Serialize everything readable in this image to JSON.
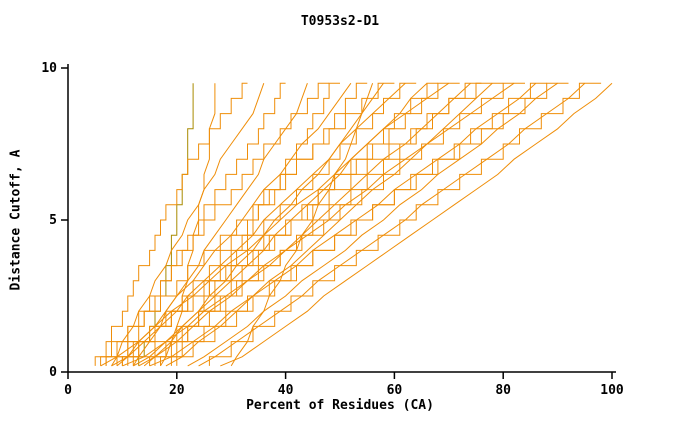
{
  "chart_data": {
    "type": "line",
    "title": "T0953s2-D1",
    "xlabel": "Percent of Residues (CA)",
    "ylabel": "Distance Cutoff, A",
    "xlim": [
      0,
      100
    ],
    "ylim": [
      0,
      10
    ],
    "xticks": [
      0,
      20,
      40,
      60,
      80,
      100
    ],
    "yticks": [
      0,
      5,
      10
    ],
    "grid": false,
    "legend": "none",
    "line_color": "#ef8e09",
    "alt_line_color": "#a88a00",
    "alt_color_indices": [
      0
    ],
    "axis_color": "#000000",
    "background": "#ffffff",
    "y_values": [
      0,
      0.5,
      1,
      1.5,
      2,
      2.5,
      3,
      3.5,
      4,
      4.5,
      5,
      5.5,
      6,
      6.5,
      7,
      7.5,
      8,
      8.5,
      9,
      9.5
    ],
    "series": [
      [
        13,
        14,
        15,
        16,
        17,
        18,
        18,
        19,
        19,
        20,
        20,
        21,
        21,
        22,
        22,
        22,
        23,
        23,
        23,
        23
      ],
      [
        17,
        18,
        19,
        20,
        21,
        21,
        22,
        22,
        23,
        23,
        24,
        24,
        25,
        25,
        26,
        26,
        26,
        27,
        27,
        27
      ],
      [
        6,
        7,
        8,
        10,
        11,
        12,
        13,
        15,
        16,
        17,
        18,
        20,
        21,
        22,
        24,
        26,
        28,
        30,
        32,
        33
      ],
      [
        8,
        9,
        10,
        12,
        13,
        15,
        16,
        18,
        19,
        21,
        22,
        24,
        25,
        27,
        28,
        30,
        32,
        34,
        35,
        36
      ],
      [
        10,
        11,
        13,
        14,
        16,
        17,
        19,
        20,
        22,
        24,
        25,
        27,
        29,
        31,
        33,
        35,
        36,
        38,
        39,
        40
      ],
      [
        12,
        13,
        15,
        17,
        18,
        20,
        22,
        24,
        25,
        27,
        29,
        31,
        33,
        35,
        36,
        38,
        40,
        42,
        43,
        44
      ],
      [
        7,
        9,
        11,
        13,
        15,
        17,
        19,
        21,
        23,
        25,
        27,
        30,
        32,
        34,
        36,
        39,
        41,
        44,
        46,
        48
      ],
      [
        9,
        11,
        13,
        16,
        18,
        20,
        23,
        25,
        27,
        30,
        32,
        34,
        36,
        39,
        41,
        43,
        46,
        48,
        50,
        52
      ],
      [
        11,
        13,
        16,
        18,
        21,
        23,
        26,
        28,
        30,
        33,
        35,
        38,
        40,
        42,
        45,
        47,
        49,
        51,
        53,
        55
      ],
      [
        14,
        16,
        19,
        21,
        24,
        26,
        29,
        31,
        34,
        36,
        38,
        41,
        43,
        46,
        48,
        50,
        52,
        54,
        56,
        58
      ],
      [
        5,
        8,
        11,
        14,
        17,
        20,
        22,
        25,
        28,
        31,
        34,
        36,
        39,
        42,
        45,
        48,
        51,
        54,
        57,
        60
      ],
      [
        8,
        11,
        14,
        17,
        20,
        22,
        25,
        28,
        31,
        34,
        36,
        39,
        42,
        45,
        48,
        50,
        53,
        56,
        59,
        62
      ],
      [
        10,
        13,
        16,
        19,
        22,
        25,
        28,
        31,
        33,
        36,
        39,
        42,
        45,
        48,
        50,
        53,
        56,
        58,
        61,
        64
      ],
      [
        12,
        15,
        18,
        21,
        24,
        27,
        30,
        33,
        36,
        38,
        41,
        44,
        47,
        50,
        52,
        55,
        58,
        61,
        63,
        66
      ],
      [
        15,
        18,
        21,
        24,
        27,
        30,
        32,
        35,
        38,
        41,
        44,
        46,
        49,
        52,
        55,
        58,
        60,
        63,
        66,
        68
      ],
      [
        6,
        9,
        13,
        16,
        19,
        23,
        26,
        29,
        33,
        36,
        39,
        42,
        46,
        49,
        52,
        55,
        58,
        62,
        66,
        70
      ],
      [
        9,
        12,
        16,
        19,
        23,
        26,
        30,
        33,
        36,
        40,
        43,
        46,
        49,
        53,
        56,
        59,
        62,
        65,
        68,
        72
      ],
      [
        13,
        16,
        20,
        23,
        26,
        30,
        33,
        36,
        40,
        43,
        46,
        49,
        52,
        55,
        58,
        62,
        65,
        68,
        71,
        74
      ],
      [
        16,
        19,
        22,
        26,
        29,
        32,
        36,
        39,
        42,
        45,
        48,
        52,
        55,
        58,
        61,
        64,
        67,
        70,
        73,
        76
      ],
      [
        18,
        21,
        24,
        28,
        31,
        34,
        37,
        41,
        44,
        47,
        50,
        53,
        56,
        60,
        63,
        66,
        69,
        72,
        75,
        78
      ],
      [
        7,
        11,
        15,
        19,
        22,
        26,
        30,
        34,
        37,
        41,
        45,
        48,
        52,
        55,
        59,
        63,
        66,
        70,
        75,
        80
      ],
      [
        10,
        14,
        18,
        22,
        25,
        29,
        33,
        37,
        40,
        44,
        48,
        51,
        55,
        58,
        62,
        66,
        70,
        74,
        78,
        82
      ],
      [
        12,
        16,
        20,
        24,
        28,
        31,
        35,
        39,
        43,
        47,
        50,
        54,
        58,
        61,
        65,
        69,
        72,
        76,
        80,
        84
      ],
      [
        15,
        19,
        23,
        27,
        30,
        34,
        38,
        42,
        45,
        49,
        53,
        57,
        60,
        64,
        68,
        72,
        75,
        79,
        83,
        86
      ],
      [
        20,
        23,
        27,
        31,
        34,
        38,
        42,
        45,
        49,
        53,
        56,
        60,
        63,
        67,
        71,
        74,
        78,
        81,
        85,
        88
      ],
      [
        22,
        25,
        29,
        33,
        36,
        40,
        43,
        47,
        51,
        54,
        58,
        61,
        65,
        68,
        72,
        76,
        79,
        83,
        86,
        90
      ],
      [
        17,
        21,
        25,
        29,
        33,
        37,
        41,
        45,
        49,
        52,
        56,
        60,
        64,
        68,
        72,
        76,
        80,
        84,
        88,
        92
      ],
      [
        24,
        27,
        31,
        35,
        39,
        43,
        46,
        50,
        54,
        58,
        62,
        65,
        69,
        73,
        77,
        81,
        84,
        88,
        92,
        95
      ],
      [
        26,
        30,
        34,
        38,
        41,
        45,
        49,
        53,
        57,
        61,
        64,
        68,
        72,
        76,
        80,
        83,
        87,
        91,
        94,
        98
      ],
      [
        28,
        32,
        36,
        40,
        44,
        47,
        51,
        55,
        59,
        63,
        67,
        71,
        75,
        79,
        82,
        86,
        90,
        93,
        97,
        100
      ],
      [
        19,
        20,
        22,
        24,
        25,
        27,
        29,
        30,
        32,
        34,
        35,
        37,
        39,
        40,
        42,
        44,
        45,
        47,
        48,
        50
      ],
      [
        30,
        31,
        33,
        34,
        36,
        37,
        39,
        40,
        42,
        43,
        45,
        46,
        48,
        49,
        51,
        52,
        53,
        54,
        55,
        56
      ]
    ]
  }
}
